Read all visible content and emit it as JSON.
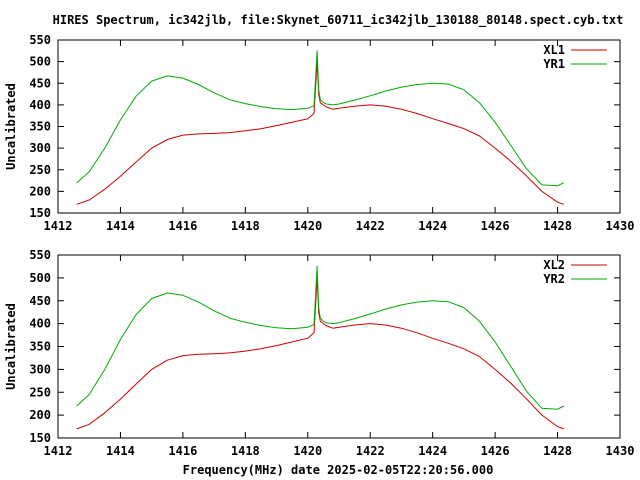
{
  "title": "HIRES Spectrum, ic342jlb, file:Skynet_60711_ic342jlb_130188_80148.spect.cyb.txt",
  "xlabel": "Frequency(MHz) date 2025-02-05T22:20:56.000",
  "colors": {
    "red": "#cc0000",
    "green": "#00aa00"
  },
  "chart_data": [
    {
      "type": "line",
      "ylabel": "Uncalibrated",
      "xlim": [
        1412,
        1430
      ],
      "ylim": [
        150,
        550
      ],
      "xticks": [
        "1412",
        "1414",
        "1416",
        "1418",
        "1420",
        "1422",
        "1424",
        "1426",
        "1428",
        "1430"
      ],
      "yticks": [
        "150",
        "200",
        "250",
        "300",
        "350",
        "400",
        "450",
        "500",
        "550"
      ],
      "grid": false,
      "legend_position": "top-right",
      "series": [
        {
          "name": "XL1",
          "color": "#cc0000",
          "x": [
            1412.6,
            1413.0,
            1413.5,
            1414.0,
            1414.5,
            1415.0,
            1415.5,
            1416.0,
            1416.5,
            1417.0,
            1417.5,
            1418.0,
            1418.5,
            1419.0,
            1419.5,
            1420.0,
            1420.2,
            1420.3,
            1420.35,
            1420.4,
            1420.5,
            1420.6,
            1420.8,
            1421.0,
            1421.5,
            1422.0,
            1422.5,
            1423.0,
            1423.5,
            1424.0,
            1424.5,
            1425.0,
            1425.5,
            1426.0,
            1426.5,
            1427.0,
            1427.5,
            1428.0,
            1428.2
          ],
          "y": [
            170,
            180,
            205,
            235,
            268,
            300,
            320,
            330,
            333,
            334,
            336,
            340,
            345,
            352,
            360,
            368,
            380,
            500,
            425,
            405,
            400,
            395,
            390,
            392,
            397,
            400,
            397,
            390,
            380,
            368,
            357,
            345,
            328,
            300,
            270,
            236,
            200,
            175,
            170
          ]
        },
        {
          "name": "YR1",
          "color": "#00aa00",
          "x": [
            1412.6,
            1413.0,
            1413.5,
            1414.0,
            1414.5,
            1415.0,
            1415.5,
            1416.0,
            1416.5,
            1417.0,
            1417.5,
            1418.0,
            1418.5,
            1419.0,
            1419.5,
            1420.0,
            1420.2,
            1420.3,
            1420.35,
            1420.4,
            1420.5,
            1420.6,
            1420.8,
            1421.0,
            1421.5,
            1422.0,
            1422.5,
            1423.0,
            1423.5,
            1424.0,
            1424.5,
            1425.0,
            1425.5,
            1426.0,
            1426.5,
            1427.0,
            1427.5,
            1428.0,
            1428.2
          ],
          "y": [
            220,
            245,
            300,
            365,
            420,
            455,
            467,
            462,
            447,
            428,
            412,
            403,
            396,
            391,
            389,
            392,
            398,
            525,
            435,
            412,
            405,
            402,
            400,
            402,
            411,
            421,
            432,
            441,
            447,
            450,
            448,
            435,
            405,
            360,
            307,
            253,
            215,
            213,
            220
          ]
        }
      ]
    },
    {
      "type": "line",
      "ylabel": "Uncalibrated",
      "xlim": [
        1412,
        1430
      ],
      "ylim": [
        150,
        550
      ],
      "xticks": [
        "1412",
        "1414",
        "1416",
        "1418",
        "1420",
        "1422",
        "1424",
        "1426",
        "1428",
        "1430"
      ],
      "yticks": [
        "150",
        "200",
        "250",
        "300",
        "350",
        "400",
        "450",
        "500",
        "550"
      ],
      "grid": false,
      "legend_position": "top-right",
      "series": [
        {
          "name": "XL2",
          "color": "#cc0000",
          "x": [
            1412.6,
            1413.0,
            1413.5,
            1414.0,
            1414.5,
            1415.0,
            1415.5,
            1416.0,
            1416.5,
            1417.0,
            1417.5,
            1418.0,
            1418.5,
            1419.0,
            1419.5,
            1420.0,
            1420.2,
            1420.3,
            1420.35,
            1420.4,
            1420.5,
            1420.6,
            1420.8,
            1421.0,
            1421.5,
            1422.0,
            1422.5,
            1423.0,
            1423.5,
            1424.0,
            1424.5,
            1425.0,
            1425.5,
            1426.0,
            1426.5,
            1427.0,
            1427.5,
            1428.0,
            1428.2
          ],
          "y": [
            170,
            180,
            205,
            235,
            268,
            300,
            320,
            330,
            333,
            334,
            336,
            340,
            345,
            352,
            360,
            368,
            380,
            500,
            425,
            405,
            400,
            395,
            390,
            392,
            397,
            400,
            397,
            390,
            380,
            368,
            357,
            345,
            328,
            300,
            270,
            236,
            200,
            175,
            170
          ]
        },
        {
          "name": "YR2",
          "color": "#00aa00",
          "x": [
            1412.6,
            1413.0,
            1413.5,
            1414.0,
            1414.5,
            1415.0,
            1415.5,
            1416.0,
            1416.5,
            1417.0,
            1417.5,
            1418.0,
            1418.5,
            1419.0,
            1419.5,
            1420.0,
            1420.2,
            1420.3,
            1420.35,
            1420.4,
            1420.5,
            1420.6,
            1420.8,
            1421.0,
            1421.5,
            1422.0,
            1422.5,
            1423.0,
            1423.5,
            1424.0,
            1424.5,
            1425.0,
            1425.5,
            1426.0,
            1426.5,
            1427.0,
            1427.5,
            1428.0,
            1428.2
          ],
          "y": [
            220,
            245,
            300,
            365,
            420,
            455,
            467,
            462,
            447,
            428,
            412,
            403,
            396,
            391,
            389,
            392,
            398,
            525,
            435,
            412,
            405,
            402,
            400,
            402,
            411,
            421,
            432,
            441,
            447,
            450,
            448,
            435,
            405,
            360,
            307,
            253,
            215,
            213,
            220
          ]
        }
      ]
    }
  ]
}
